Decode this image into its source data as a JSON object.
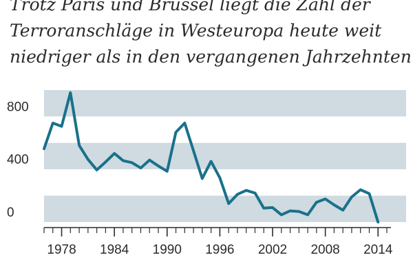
{
  "chart_data": {
    "type": "line",
    "title": "Trotz Paris und Brüssel liegt die Zahl der Terroranschläge in Westeuropa heute weit niedriger als in den vergangenen Jahrzehnten",
    "title_lines": [
      "Trotz Paris und Brüssel liegt die Zahl der",
      "Terroranschläge in Westeuropa heute weit",
      "niedriger als in den vergangenen Jahrzehnten"
    ],
    "xlabel": "",
    "ylabel": "",
    "xlim": [
      1976,
      2015
    ],
    "ylim": [
      0,
      1000
    ],
    "y_ticks": [
      0,
      400,
      800
    ],
    "y_tick_labels": [
      "0",
      "400",
      "800"
    ],
    "x_ticks": [
      1978,
      1984,
      1990,
      1996,
      2002,
      2008,
      2014
    ],
    "x_tick_labels": [
      "1978",
      "1984",
      "1990",
      "1996",
      "2002",
      "2008",
      "2014"
    ],
    "bands": [
      [
        0,
        200
      ],
      [
        400,
        600
      ],
      [
        800,
        1000
      ]
    ],
    "colors": {
      "line": "#19718a",
      "band": "#cfdae1",
      "axis": "#2b2b2b",
      "text": "#2b2b2b"
    },
    "series": [
      {
        "name": "Terroranschläge",
        "x": [
          1976,
          1977,
          1978,
          1979,
          1980,
          1981,
          1982,
          1983,
          1984,
          1985,
          1986,
          1987,
          1988,
          1989,
          1990,
          1991,
          1992,
          1993,
          1994,
          1995,
          1996,
          1997,
          1998,
          1999,
          2000,
          2001,
          2002,
          2003,
          2004,
          2005,
          2006,
          2007,
          2008,
          2009,
          2010,
          2011,
          2012,
          2013,
          2014
        ],
        "values": [
          555,
          750,
          725,
          980,
          580,
          475,
          395,
          455,
          520,
          465,
          450,
          410,
          470,
          425,
          385,
          680,
          750,
          540,
          330,
          460,
          335,
          140,
          210,
          240,
          220,
          105,
          110,
          55,
          85,
          80,
          55,
          150,
          175,
          130,
          90,
          190,
          245,
          215,
          0
        ]
      }
    ]
  }
}
